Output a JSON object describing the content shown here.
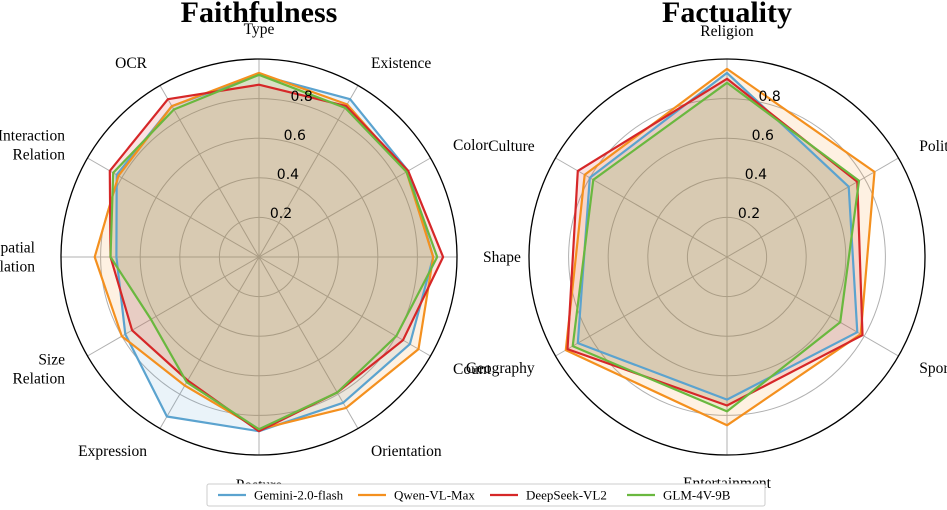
{
  "chart_data": [
    {
      "type": "radar",
      "title": "Faithfulness",
      "axes": [
        "Type",
        "Existence",
        "Color",
        "Shape",
        "Count",
        "Orientation",
        "Posture",
        "Expression",
        "Size\nRelation",
        "Spatial\nRelation",
        "Interaction\nRelation",
        "OCR"
      ],
      "rticks": [
        "0.2",
        "0.4",
        "0.6",
        "0.8"
      ],
      "rlim": [
        0,
        1
      ],
      "series": [
        {
          "name": "Gemini-2.0-flash",
          "values": [
            0.92,
            0.92,
            0.87,
            0.88,
            0.88,
            0.85,
            0.88,
            0.93,
            0.78,
            0.72,
            0.83,
            0.88
          ]
        },
        {
          "name": "Qwen-VL-Max",
          "values": [
            0.93,
            0.89,
            0.86,
            0.88,
            0.93,
            0.88,
            0.87,
            0.75,
            0.8,
            0.83,
            0.82,
            0.88
          ]
        },
        {
          "name": "DeepSeek-VL2",
          "values": [
            0.87,
            0.88,
            0.87,
            0.93,
            0.84,
            0.79,
            0.88,
            0.72,
            0.74,
            0.75,
            0.87,
            0.92
          ]
        },
        {
          "name": "GLM-4V-9B",
          "values": [
            0.92,
            0.87,
            0.86,
            0.9,
            0.8,
            0.79,
            0.87,
            0.73,
            0.63,
            0.75,
            0.85,
            0.86
          ]
        }
      ]
    },
    {
      "type": "radar",
      "title": "Factuality",
      "axes": [
        "Religion",
        "Politics",
        "Sports",
        "Entertainment",
        "Geography",
        "Culture"
      ],
      "rticks": [
        "0.2",
        "0.4",
        "0.6",
        "0.8"
      ],
      "rlim": [
        0,
        1
      ],
      "series": [
        {
          "name": "Gemini-2.0-flash",
          "values": [
            0.93,
            0.71,
            0.76,
            0.72,
            0.87,
            0.8
          ]
        },
        {
          "name": "Qwen-VL-Max",
          "values": [
            0.95,
            0.86,
            0.78,
            0.85,
            0.94,
            0.83
          ]
        },
        {
          "name": "DeepSeek-VL2",
          "values": [
            0.9,
            0.76,
            0.79,
            0.75,
            0.93,
            0.87
          ]
        },
        {
          "name": "GLM-4V-9B",
          "values": [
            0.88,
            0.77,
            0.66,
            0.78,
            0.9,
            0.78
          ]
        }
      ]
    }
  ],
  "legend": [
    {
      "name": "Gemini-2.0-flash",
      "color": "#5ba3cf"
    },
    {
      "name": "Qwen-VL-Max",
      "color": "#f4901e"
    },
    {
      "name": "DeepSeek-VL2",
      "color": "#d62728"
    },
    {
      "name": "GLM-4V-9B",
      "color": "#6ab83f"
    }
  ]
}
